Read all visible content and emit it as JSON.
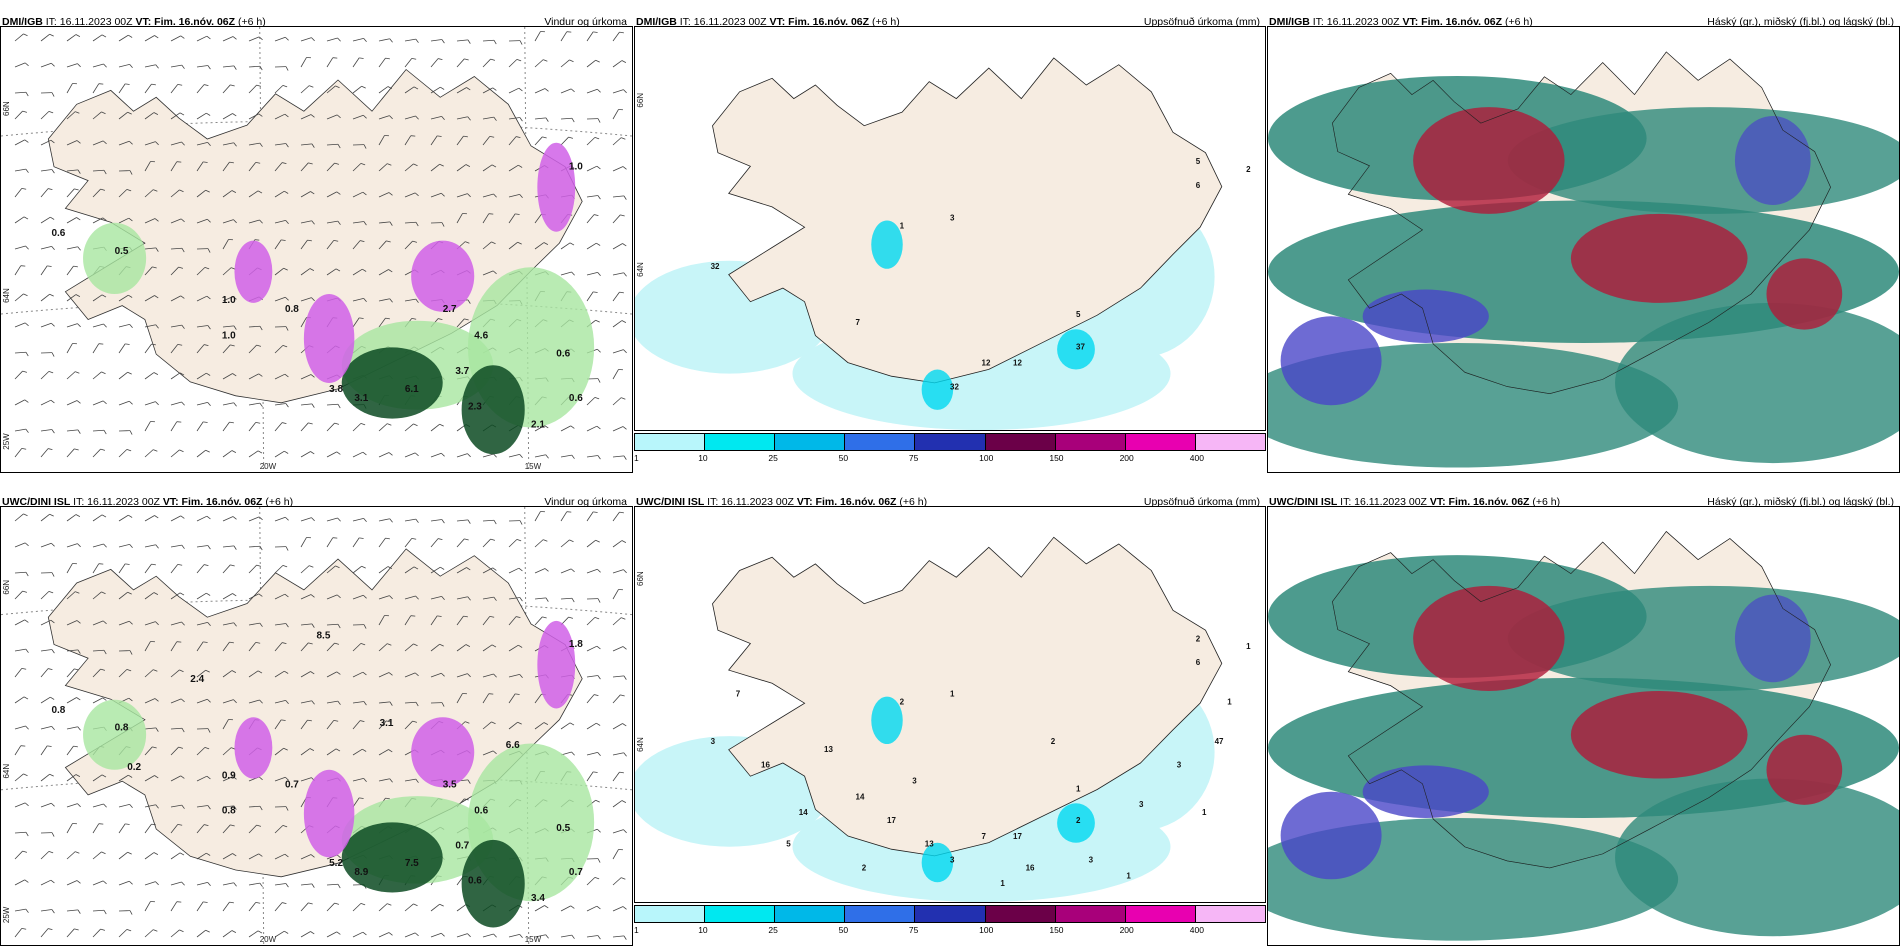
{
  "panels": [
    {
      "src": "DMI/IGB",
      "it": "IT: 16.11.2023 00Z",
      "vt": "VT: Fim. 16.nóv. 06Z",
      "plus": "(+6 h)",
      "product": "Vindur og úrkoma",
      "type": "wind",
      "lon_labels": [
        "20W",
        "15W"
      ],
      "lat_labels": [
        "66N",
        "64N",
        "25W"
      ],
      "values": [
        "0.6",
        "0.5",
        "1.0",
        "0.8",
        "1.0",
        "4.6",
        "3.7",
        "2.3",
        "0.6",
        "0.6",
        "6.1",
        "3.1",
        "3.8",
        "2.1",
        "2.7",
        "1.0"
      ]
    },
    {
      "src": "DMI/IGB",
      "it": "IT: 16.11.2023 00Z",
      "vt": "VT: Fim. 16.nóv. 06Z",
      "plus": "(+6 h)",
      "product": "Uppsöfnuð úrkoma (mm)",
      "type": "precip",
      "lat_labels": [
        "66N",
        "64N"
      ],
      "values": [
        "2",
        "5",
        "6",
        "32",
        "1",
        "3",
        "7",
        "12",
        "32",
        "5",
        "37",
        "12"
      ]
    },
    {
      "src": "DMI/IGB",
      "it": "IT: 16.11.2023 00Z",
      "vt": "VT: Fim. 16.nóv. 06Z",
      "plus": "(+6 h)",
      "product": "Háský (gr.), miðský (fj.bl.) og lágský (bl.)",
      "type": "cloud"
    },
    {
      "src": "UWC/DINI ISL",
      "it": "IT: 16.11.2023 00Z",
      "vt": "VT: Fim. 16.nóv. 06Z",
      "plus": "(+6 h)",
      "product": "Vindur og úrkoma",
      "type": "wind",
      "lon_labels": [
        "20W",
        "15W"
      ],
      "lat_labels": [
        "66N",
        "64N",
        "25W"
      ],
      "values": [
        "0.8",
        "0.8",
        "0.8",
        "0.7",
        "0.9",
        "0.6",
        "0.7",
        "0.6",
        "0.7",
        "0.5",
        "7.5",
        "8.9",
        "5.2",
        "3.4",
        "3.5",
        "1.8",
        "3.1",
        "2.4",
        "0.2",
        "8.5",
        "6.6"
      ]
    },
    {
      "src": "UWC/DINI ISL",
      "it": "IT: 16.11.2023 00Z",
      "vt": "VT: Fim. 16.nóv. 06Z",
      "plus": "(+6 h)",
      "product": "Uppsöfnuð úrkoma (mm)",
      "type": "precip",
      "lat_labels": [
        "66N",
        "64N"
      ],
      "values": [
        "1",
        "2",
        "6",
        "3",
        "2",
        "1",
        "14",
        "7",
        "3",
        "1",
        "2",
        "17",
        "13",
        "16",
        "14",
        "17",
        "13",
        "16",
        "3",
        "3",
        "3",
        "47",
        "1",
        "7",
        "2",
        "1",
        "2",
        "5",
        "3",
        "1",
        "1"
      ]
    },
    {
      "src": "UWC/DINI ISL",
      "it": "IT: 16.11.2023 00Z",
      "vt": "VT: Fim. 16.nóv. 06Z",
      "plus": "(+6 h)",
      "product": "Háský (gr.), miðský (fj.bl.) og lágský (bl.)",
      "type": "cloud"
    }
  ],
  "colorbar": {
    "labels": [
      "1",
      "10",
      "25",
      "50",
      "75",
      "100",
      "150",
      "200",
      "400"
    ],
    "colors": [
      "#b8f6fb",
      "#00e8f0",
      "#00b8e8",
      "#2f6fe8",
      "#2230b0",
      "#6b0048",
      "#a8007a",
      "#e800b0",
      "#f6b6f6"
    ]
  },
  "colors": {
    "land": "#f6ece1",
    "sea": "#ffffff",
    "precip_light": "#c8f5f8",
    "precip_mid": "#00d8f0",
    "wind_green_light": "#a8e6a0",
    "wind_green_dark": "#0c4a22",
    "wind_magenta": "#d060e8",
    "cloud_teal": "#2e8a7a",
    "cloud_red": "#b01a38",
    "cloud_blue": "#4a46c8"
  }
}
